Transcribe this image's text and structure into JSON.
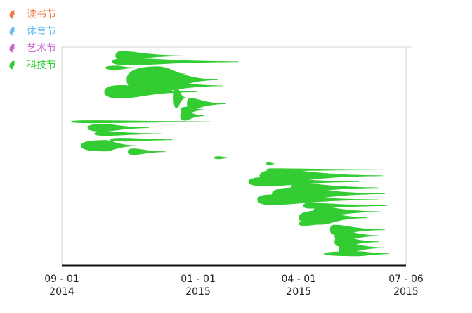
{
  "chart_data": {
    "type": "area",
    "title": "",
    "xlabel": "",
    "ylabel": "",
    "x_axis": {
      "min": "2014-09-01",
      "max": "2015-07-06",
      "ticks": [
        {
          "date": "2014-09-01",
          "line1": "09 - 01",
          "line2": "2014"
        },
        {
          "date": "2015-01-01",
          "line1": "01 - 01",
          "line2": "2015"
        },
        {
          "date": "2015-04-01",
          "line1": "04 - 01",
          "line2": "2015"
        },
        {
          "date": "2015-07-06",
          "line1": "07 - 06",
          "line2": "2015"
        }
      ]
    },
    "legend": {
      "placement": "top-left",
      "items": [
        {
          "name": "读书节",
          "color": "#f07a4a"
        },
        {
          "name": "体育节",
          "color": "#6cc0f0"
        },
        {
          "name": "艺术节",
          "color": "#cc66cc"
        },
        {
          "name": "科技节",
          "color": "#33cc33"
        }
      ]
    },
    "series_color": "#33cc33",
    "events": [
      {
        "start": "2014-10-19",
        "peak": "2014-10-25",
        "end": "2014-12-19",
        "height": 13
      },
      {
        "start": "2014-10-16",
        "peak": "2014-10-31",
        "end": "2015-02-06",
        "height": 10
      },
      {
        "start": "2014-10-10",
        "peak": "2014-10-20",
        "end": "2014-11-05",
        "height": 6
      },
      {
        "start": "2014-11-13",
        "peak": "2014-11-20",
        "end": "2014-12-21",
        "height": 14
      },
      {
        "start": "2014-10-29",
        "peak": "2014-11-26",
        "end": "2015-01-19",
        "height": 38
      },
      {
        "start": "2014-11-12",
        "peak": "2014-11-25",
        "end": "2015-01-23",
        "height": 17
      },
      {
        "start": "2014-10-09",
        "peak": "2014-10-24",
        "end": "2014-12-31",
        "height": 19
      },
      {
        "start": "2014-12-10",
        "peak": "2014-12-13",
        "end": "2014-12-21",
        "height": 30
      },
      {
        "start": "2014-12-22",
        "peak": "2014-12-25",
        "end": "2015-01-26",
        "height": 16
      },
      {
        "start": "2014-12-16",
        "peak": "2014-12-24",
        "end": "2015-01-06",
        "height": 9
      },
      {
        "start": "2014-12-16",
        "peak": "2014-12-20",
        "end": "2015-01-06",
        "height": 14
      },
      {
        "start": "2014-09-09",
        "peak": "2014-09-25",
        "end": "2015-01-12",
        "height": 4
      },
      {
        "start": "2014-09-24",
        "peak": "2014-10-08",
        "end": "2014-11-18",
        "height": 11
      },
      {
        "start": "2014-09-30",
        "peak": "2014-10-10",
        "end": "2014-11-29",
        "height": 6
      },
      {
        "start": "2014-10-14",
        "peak": "2014-10-25",
        "end": "2014-12-09",
        "height": 5
      },
      {
        "start": "2014-09-18",
        "peak": "2014-10-10",
        "end": "2014-11-07",
        "height": 16
      },
      {
        "start": "2014-10-30",
        "peak": "2014-11-04",
        "end": "2014-12-03",
        "height": 9
      },
      {
        "start": "2015-01-15",
        "peak": "2015-01-20",
        "end": "2015-01-28",
        "height": 4
      },
      {
        "start": "2015-03-03",
        "peak": "2015-03-05",
        "end": "2015-03-10",
        "height": 4
      },
      {
        "start": "2015-03-03",
        "peak": "2015-03-08",
        "end": "2015-06-16",
        "height": 4
      },
      {
        "start": "2015-02-25",
        "peak": "2015-03-16",
        "end": "2015-06-16",
        "height": 17
      },
      {
        "start": "2015-02-15",
        "peak": "2015-03-03",
        "end": "2015-05-25",
        "height": 13
      },
      {
        "start": "2015-03-25",
        "peak": "2015-04-01",
        "end": "2015-06-11",
        "height": 13
      },
      {
        "start": "2015-03-08",
        "peak": "2015-03-31",
        "end": "2015-06-17",
        "height": 18
      },
      {
        "start": "2015-02-23",
        "peak": "2015-03-08",
        "end": "2015-06-11",
        "height": 15
      },
      {
        "start": "2015-04-05",
        "peak": "2015-04-11",
        "end": "2015-06-19",
        "height": 8
      },
      {
        "start": "2015-04-14",
        "peak": "2015-04-20",
        "end": "2015-06-13",
        "height": 14
      },
      {
        "start": "2015-04-01",
        "peak": "2015-04-20",
        "end": "2015-06-01",
        "height": 20
      },
      {
        "start": "2015-04-01",
        "peak": "2015-04-06",
        "end": "2015-04-29",
        "height": 6
      },
      {
        "start": "2015-04-29",
        "peak": "2015-05-03",
        "end": "2015-06-17",
        "height": 14
      },
      {
        "start": "2015-05-03",
        "peak": "2015-05-09",
        "end": "2015-06-12",
        "height": 16
      },
      {
        "start": "2015-05-03",
        "peak": "2015-05-09",
        "end": "2015-06-12",
        "height": 14
      },
      {
        "start": "2015-05-07",
        "peak": "2015-05-09",
        "end": "2015-06-17",
        "height": 18
      },
      {
        "start": "2015-04-24",
        "peak": "2015-05-24",
        "end": "2015-06-21",
        "height": 7
      }
    ]
  }
}
